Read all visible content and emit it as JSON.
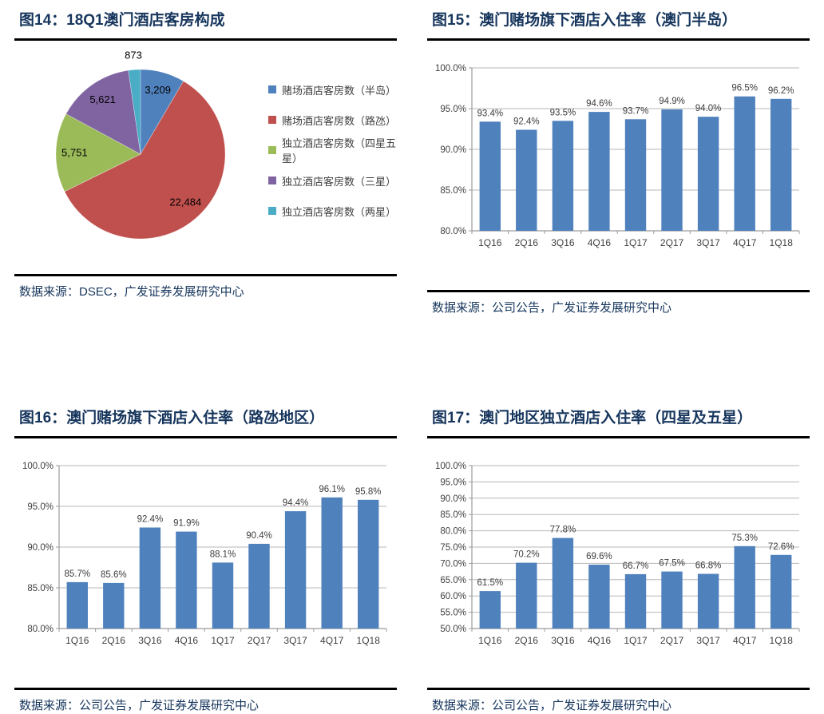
{
  "styles": {
    "page_bg": "#ffffff",
    "title_color": "#17365D",
    "source_color": "#17365D",
    "rule_color": "#000000",
    "bar_color": "#4F81BD",
    "grid_color": "#B7B7B7",
    "axis_color": "#9B9B9B",
    "tick_label_color": "#404040",
    "data_label_color": "#3D3D3D",
    "pie_label_color": "#000000"
  },
  "chart_data": [
    {
      "type": "pie",
      "title": "图14：18Q1澳门酒店客房构成",
      "labels": [
        "赌场酒店客房数（半岛）",
        "赌场酒店客房数（路氹）",
        "独立酒店客房数（四星五星）",
        "独立酒店客房数（三星）",
        "独立酒店客房数（两星）"
      ],
      "values": [
        3209,
        22484,
        5751,
        5621,
        873
      ],
      "colors": [
        "#4F81BD",
        "#C0504D",
        "#9BBB59",
        "#8064A2",
        "#4BACC6"
      ],
      "legend_position": "right",
      "start_angle_deg": 0,
      "direction": "clockwise",
      "source": "数据来源：DSEC，广发证券发展研究中心"
    },
    {
      "type": "bar",
      "title": "图15：澳门赌场旗下酒店入住率（澳门半岛）",
      "categories": [
        "1Q16",
        "2Q16",
        "3Q16",
        "4Q16",
        "1Q17",
        "2Q17",
        "3Q17",
        "4Q17",
        "1Q18"
      ],
      "values": [
        93.4,
        92.4,
        93.5,
        94.6,
        93.7,
        94.9,
        94.0,
        96.5,
        96.2
      ],
      "ylim": [
        80,
        100
      ],
      "ytick_step": 5,
      "grid": true,
      "legend_position": "none",
      "value_suffix": "%",
      "source": "数据来源：公司公告，广发证券发展研究中心"
    },
    {
      "type": "bar",
      "title": "图16：澳门赌场旗下酒店入住率（路氹地区）",
      "categories": [
        "1Q16",
        "2Q16",
        "3Q16",
        "4Q16",
        "1Q17",
        "2Q17",
        "3Q17",
        "4Q17",
        "1Q18"
      ],
      "values": [
        85.7,
        85.6,
        92.4,
        91.9,
        88.1,
        90.4,
        94.4,
        96.1,
        95.8
      ],
      "ylim": [
        80,
        100
      ],
      "ytick_step": 5,
      "grid": true,
      "legend_position": "none",
      "value_suffix": "%",
      "source": "数据来源：公司公告，广发证券发展研究中心"
    },
    {
      "type": "bar",
      "title": "图17：澳门地区独立酒店入住率（四星及五星）",
      "categories": [
        "1Q16",
        "2Q16",
        "3Q16",
        "4Q16",
        "1Q17",
        "2Q17",
        "3Q17",
        "4Q17",
        "1Q18"
      ],
      "values": [
        61.5,
        70.2,
        77.8,
        69.6,
        66.7,
        67.5,
        66.8,
        75.3,
        72.6
      ],
      "ylim": [
        50,
        100
      ],
      "ytick_step": 5,
      "grid": true,
      "legend_position": "none",
      "value_suffix": "%",
      "source": "数据来源：公司公告，广发证券发展研究中心"
    }
  ]
}
